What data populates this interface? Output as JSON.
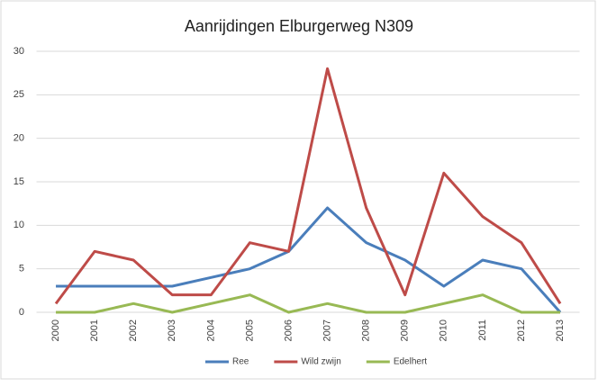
{
  "chart_data": {
    "type": "line",
    "title": "Aanrijdingen Elburgerweg N309",
    "categories": [
      "2000",
      "2001",
      "2002",
      "2003",
      "2004",
      "2005",
      "2006",
      "2007",
      "2008",
      "2009",
      "2010",
      "2011",
      "2012",
      "2013"
    ],
    "series": [
      {
        "name": "Ree",
        "color": "#4a7ebb",
        "values": [
          3,
          3,
          3,
          3,
          4,
          5,
          7,
          12,
          8,
          6,
          3,
          6,
          5,
          0
        ]
      },
      {
        "name": "Wild zwijn",
        "color": "#be4b48",
        "values": [
          1,
          7,
          6,
          2,
          2,
          8,
          7,
          28,
          12,
          2,
          16,
          11,
          8,
          1
        ]
      },
      {
        "name": "Edelhert",
        "color": "#98b954",
        "values": [
          0,
          0,
          1,
          0,
          1,
          2,
          0,
          1,
          0,
          0,
          1,
          2,
          0,
          0
        ]
      }
    ],
    "ylim": [
      0,
      30
    ],
    "yticks": [
      0,
      5,
      10,
      15,
      20,
      25,
      30
    ],
    "grid": true,
    "legend": "bottom"
  }
}
